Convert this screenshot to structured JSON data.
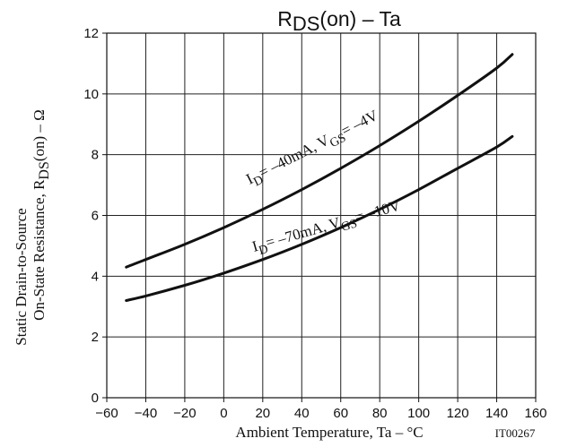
{
  "chart_data": {
    "type": "line",
    "title": {
      "main": "R",
      "sub": "DS",
      "rest": "(on)  –  Ta"
    },
    "xlabel": "Ambient Temperature, Ta  –  °C",
    "ylabel": {
      "line1": "Static Drain-to-Source",
      "line2_pre": "On-State Resistance, R",
      "line2_sub": "DS",
      "line2_post": "(on)  –  Ω"
    },
    "figure_id": "IT00267",
    "xlim": [
      -60,
      160
    ],
    "ylim": [
      0,
      12
    ],
    "xticks": [
      -60,
      -40,
      -20,
      0,
      20,
      40,
      60,
      80,
      100,
      120,
      140,
      160
    ],
    "yticks": [
      0,
      2,
      4,
      6,
      8,
      10,
      12
    ],
    "grid": true,
    "series": [
      {
        "label_parts": [
          "I",
          "D",
          "= –40mA, V",
          "GS",
          "= –4V"
        ],
        "x": [
          -50,
          -40,
          -20,
          0,
          20,
          40,
          60,
          80,
          100,
          120,
          140,
          148
        ],
        "y": [
          4.3,
          4.55,
          5.05,
          5.6,
          6.2,
          6.85,
          7.55,
          8.3,
          9.1,
          9.95,
          10.85,
          11.3
        ]
      },
      {
        "label_parts": [
          "I",
          "D",
          "= –70mA, V",
          "GS",
          "= –10V"
        ],
        "x": [
          -50,
          -40,
          -20,
          0,
          20,
          40,
          60,
          80,
          100,
          120,
          140,
          148
        ],
        "y": [
          3.2,
          3.35,
          3.7,
          4.1,
          4.55,
          5.05,
          5.6,
          6.2,
          6.85,
          7.55,
          8.25,
          8.6
        ]
      }
    ]
  }
}
